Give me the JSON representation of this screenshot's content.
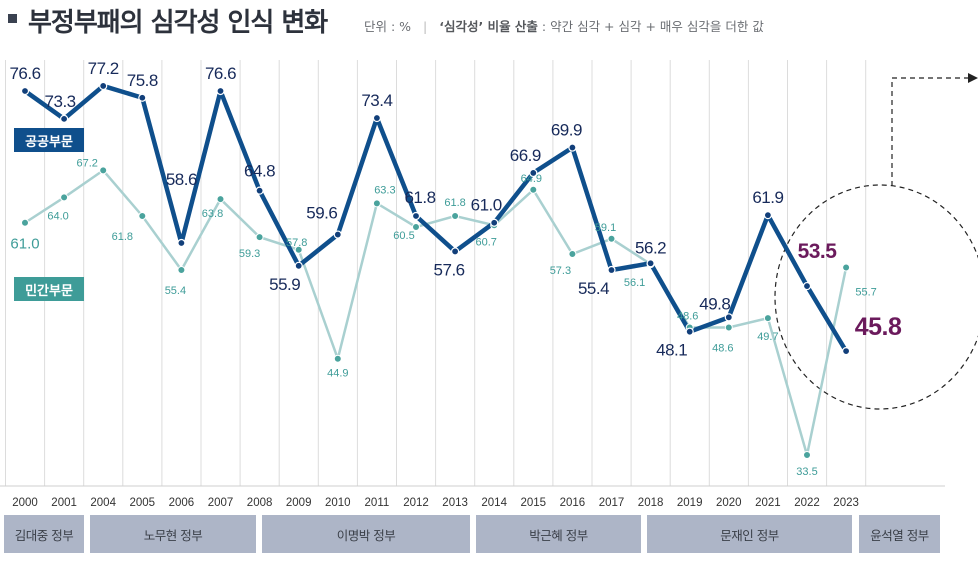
{
  "header": {
    "title": "부정부패의 심각성 인식 변화",
    "unit": "단위 : %",
    "separator": "|",
    "note_bold": "‘심각성’ 비율 산출",
    "note": " : 약간 심각 + 심각 + 매우 심각을 더한 값"
  },
  "chart_data": {
    "type": "line",
    "title": "부정부패의 심각성 인식 변화",
    "categories": [
      "2000",
      "2001",
      "2004",
      "2005",
      "2006",
      "2007",
      "2008",
      "2009",
      "2010",
      "2011",
      "2012",
      "2013",
      "2014",
      "2015",
      "2016",
      "2017",
      "2018",
      "2019",
      "2020",
      "2021",
      "2022",
      "2023"
    ],
    "series": [
      {
        "name": "공공부문",
        "color": "#0f4f8c",
        "values": [
          76.6,
          73.3,
          77.2,
          75.8,
          58.6,
          76.6,
          64.8,
          55.9,
          59.6,
          73.4,
          61.8,
          57.6,
          61.0,
          66.9,
          69.9,
          55.4,
          56.2,
          48.1,
          49.8,
          61.9,
          53.5,
          45.8
        ],
        "labels": [
          "76.6",
          "73.3",
          "77.2",
          "75.8",
          "58.6",
          "76.6",
          "64.8",
          "55.9",
          "59.6",
          "73.4",
          "61.8",
          "57.6",
          "61.0",
          "66.9",
          "69.9",
          "55.4",
          "56.2",
          "48.1",
          "49.8",
          "61.9",
          "53.5",
          "45.8"
        ]
      },
      {
        "name": "민간부문",
        "color": "#a9d0d0",
        "values": [
          61.0,
          64.0,
          67.2,
          61.8,
          55.4,
          63.8,
          59.3,
          57.8,
          44.9,
          63.3,
          60.5,
          61.8,
          60.7,
          64.9,
          57.3,
          59.1,
          56.1,
          48.6,
          48.6,
          49.7,
          33.5,
          55.7
        ],
        "labels": [
          "61.0",
          "64.0",
          "67.2",
          "61.8",
          "55.4",
          "63.8",
          "59.3",
          "57.8",
          "44.9",
          "63.3",
          "60.5",
          "61.8",
          "60.7",
          "64.9",
          "57.3",
          "59.1",
          "56.1",
          "48.6",
          "48.6",
          "49.7",
          "33.5",
          "55.7"
        ]
      }
    ],
    "highlight_color": "#6b1a5c",
    "highlight_categories": [
      "2022",
      "2023"
    ],
    "grid": "vertical",
    "legend": "inline-left"
  },
  "legend": {
    "public": "공공부문",
    "private": "민간부문",
    "public_color": "#0f4f8c",
    "private_color": "#3e9c98"
  },
  "governments": [
    {
      "label": "김대중 정부"
    },
    {
      "label": "노무현 정부"
    },
    {
      "label": "이명박 정부"
    },
    {
      "label": "박근혜 정부"
    },
    {
      "label": "문재인 정부"
    },
    {
      "label": "윤석열 정부"
    }
  ]
}
